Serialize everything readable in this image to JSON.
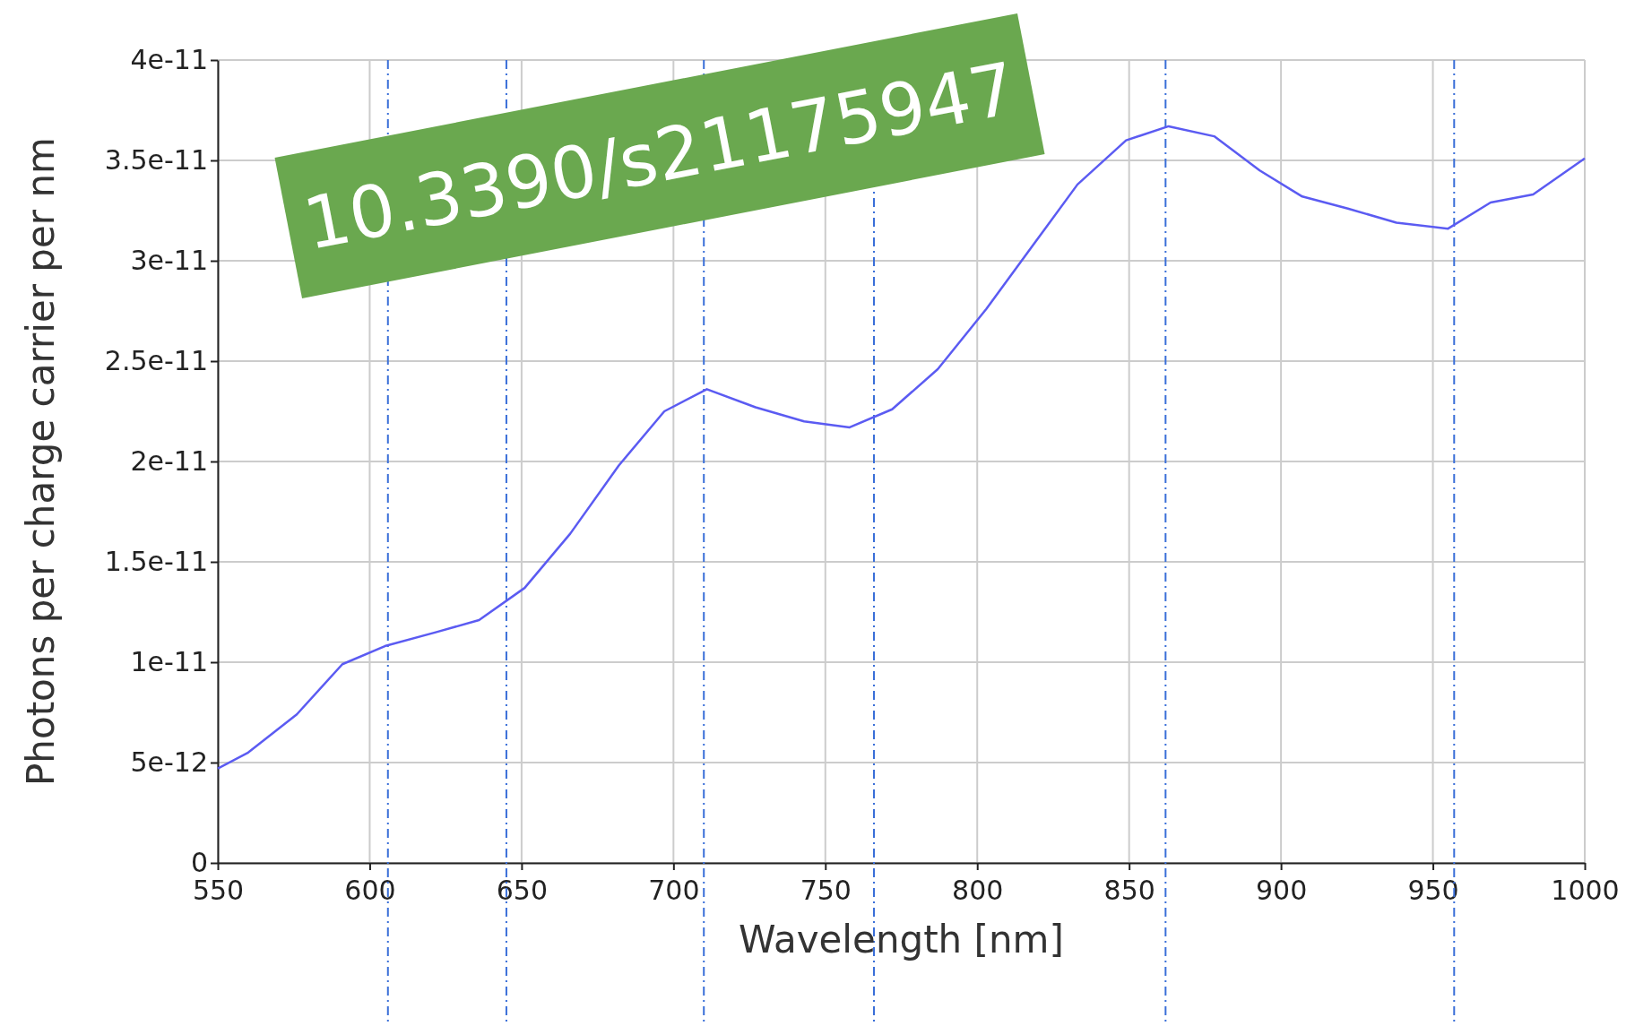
{
  "chart_data": {
    "type": "line",
    "xlabel": "Wavelength [nm]",
    "ylabel": "Photons per charge carrier per nm",
    "annotations": [
      "10.3390/s21175947"
    ],
    "x": [
      550,
      560,
      576,
      591,
      605,
      622,
      636,
      651,
      666,
      682,
      697,
      711,
      727,
      743,
      758,
      772,
      787,
      803,
      818,
      833,
      849,
      863,
      878,
      893,
      907,
      922,
      938,
      955,
      969,
      983,
      1000
    ],
    "series": [
      {
        "color": "#5b5bf2",
        "values": [
          4.7e-12,
          5.5e-12,
          7.4e-12,
          9.9e-12,
          1.08e-11,
          1.15e-11,
          1.21e-11,
          1.37e-11,
          1.64e-11,
          1.98e-11,
          2.25e-11,
          2.36e-11,
          2.27e-11,
          2.2e-11,
          2.17e-11,
          2.26e-11,
          2.46e-11,
          2.76e-11,
          3.07e-11,
          3.38e-11,
          3.6e-11,
          3.67e-11,
          3.62e-11,
          3.45e-11,
          3.32e-11,
          3.26e-11,
          3.19e-11,
          3.16e-11,
          3.29e-11,
          3.33e-11,
          3.51e-11
        ]
      }
    ],
    "xlim": [
      550,
      1000
    ],
    "xticks": [
      550,
      600,
      650,
      700,
      750,
      800,
      850,
      900,
      950,
      1000
    ],
    "ylim": [
      0,
      4e-11
    ],
    "yticks": [
      {
        "value": 0,
        "label": "0"
      },
      {
        "value": 5e-12,
        "label": "5e-12"
      },
      {
        "value": 1e-11,
        "label": "1e-11"
      },
      {
        "value": 1.5e-11,
        "label": "1.5e-11"
      },
      {
        "value": 2e-11,
        "label": "2e-11"
      },
      {
        "value": 2.5e-11,
        "label": "2.5e-11"
      },
      {
        "value": 3e-11,
        "label": "3e-11"
      },
      {
        "value": 3.5e-11,
        "label": "3.5e-11"
      },
      {
        "value": 4e-11,
        "label": "4e-11"
      }
    ],
    "grid": true,
    "line_style": "solid",
    "marker": "none",
    "ref_lines": [
      {
        "axis": "x",
        "value": 606,
        "color": "#3a6fd8",
        "line_style": "dashdot"
      },
      {
        "axis": "x",
        "value": 645,
        "color": "#3a6fd8",
        "line_style": "dashdot"
      },
      {
        "axis": "x",
        "value": 710,
        "color": "#3a6fd8",
        "line_style": "dashdot"
      },
      {
        "axis": "x",
        "value": 766,
        "color": "#3a6fd8",
        "line_style": "dashdot"
      },
      {
        "axis": "x",
        "value": 862,
        "color": "#3a6fd8",
        "line_style": "dashdot"
      },
      {
        "axis": "x",
        "value": 957,
        "color": "#3a6fd8",
        "line_style": "dashdot"
      }
    ]
  }
}
